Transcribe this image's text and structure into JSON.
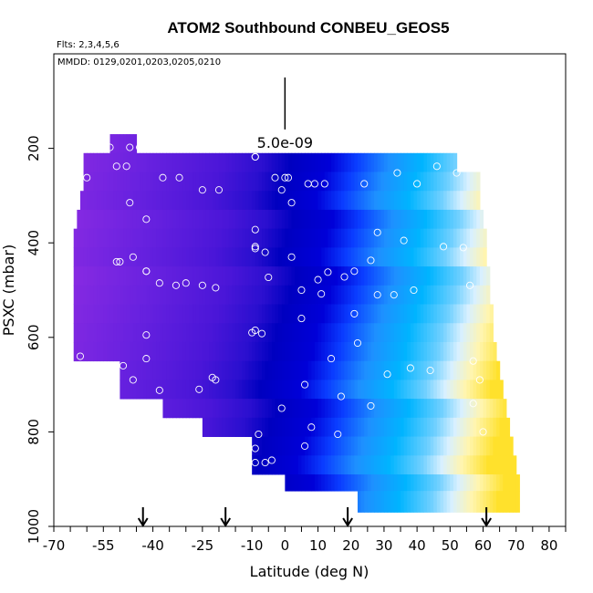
{
  "chart_data": {
    "type": "heatmap",
    "title": "ATOM2 Southbound CONBEU_GEOS5",
    "flights_note": "Flts: 2,3,4,5,6",
    "dates_note": "MMDD: 0129,0201,0203,0205,0210",
    "xlabel": "Latitude (deg N)",
    "ylabel": "PSXC (mbar)",
    "xlim": [
      -70,
      85
    ],
    "ylim": [
      1000,
      0
    ],
    "x_ticks": [
      -70,
      -55,
      -40,
      -25,
      -10,
      0,
      10,
      20,
      30,
      40,
      50,
      60,
      70,
      80
    ],
    "x_ticks_minor_step": 5,
    "y_ticks": [
      200,
      400,
      600,
      800,
      1000
    ],
    "scale_bar": {
      "label": "5.0e-09",
      "x": 0,
      "p_top": 50,
      "p_bottom": 160
    },
    "flight_arrows_lat": [
      -43,
      -18,
      19,
      61
    ],
    "colors": {
      "purple": "#8a2be2",
      "violet": "#5a1ee0",
      "indigo": "#2a10d0",
      "navy": "#0000c8",
      "blue": "#1450ff",
      "azure": "#1e90ff",
      "cyan": "#00bfff",
      "pale": "#d8f0ff",
      "cream": "#fffacd",
      "yellow": "#ffe12c",
      "marker": "#ffffff"
    },
    "rows": [
      {
        "p_top": 170,
        "p_bottom": 210,
        "lat_min": -53,
        "lat_max": -45
      },
      {
        "p_top": 210,
        "p_bottom": 250,
        "lat_min": -61,
        "lat_max": 52
      },
      {
        "p_top": 250,
        "p_bottom": 290,
        "lat_min": -61,
        "lat_max": 59
      },
      {
        "p_top": 290,
        "p_bottom": 330,
        "lat_min": -62,
        "lat_max": 59
      },
      {
        "p_top": 330,
        "p_bottom": 370,
        "lat_min": -63,
        "lat_max": 60
      },
      {
        "p_top": 370,
        "p_bottom": 410,
        "lat_min": -64,
        "lat_max": 61
      },
      {
        "p_top": 410,
        "p_bottom": 450,
        "lat_min": -64,
        "lat_max": 61
      },
      {
        "p_top": 450,
        "p_bottom": 490,
        "lat_min": -64,
        "lat_max": 62
      },
      {
        "p_top": 490,
        "p_bottom": 530,
        "lat_min": -64,
        "lat_max": 62
      },
      {
        "p_top": 530,
        "p_bottom": 570,
        "lat_min": -64,
        "lat_max": 63
      },
      {
        "p_top": 570,
        "p_bottom": 610,
        "lat_min": -64,
        "lat_max": 63
      },
      {
        "p_top": 610,
        "p_bottom": 650,
        "lat_min": -64,
        "lat_max": 64
      },
      {
        "p_top": 650,
        "p_bottom": 690,
        "lat_min": -50,
        "lat_max": 65
      },
      {
        "p_top": 690,
        "p_bottom": 730,
        "lat_min": -50,
        "lat_max": 66
      },
      {
        "p_top": 730,
        "p_bottom": 770,
        "lat_min": -37,
        "lat_max": 67
      },
      {
        "p_top": 770,
        "p_bottom": 810,
        "lat_min": -25,
        "lat_max": 68
      },
      {
        "p_top": 810,
        "p_bottom": 850,
        "lat_min": -10,
        "lat_max": 69
      },
      {
        "p_top": 850,
        "p_bottom": 890,
        "lat_min": -10,
        "lat_max": 70
      },
      {
        "p_top": 890,
        "p_bottom": 925,
        "lat_min": 0,
        "lat_max": 71
      },
      {
        "p_top": 925,
        "p_bottom": 970,
        "lat_min": 22,
        "lat_max": 71
      }
    ],
    "color_bands": [
      {
        "lat": -70,
        "color": "#8a2be2"
      },
      {
        "lat": -45,
        "color": "#6a22e0"
      },
      {
        "lat": -20,
        "color": "#4a16d8"
      },
      {
        "lat": -8,
        "color": "#2a0fcf"
      },
      {
        "lat": 0,
        "color": "#0000c0"
      },
      {
        "lat": 12,
        "color": "#0000d8"
      },
      {
        "lat": 20,
        "color": "#0a3cff"
      },
      {
        "lat": 30,
        "color": "#1e90ff"
      },
      {
        "lat": 40,
        "color": "#00b4ff"
      },
      {
        "lat": 50,
        "color": "#70d0ff"
      },
      {
        "lat": 56,
        "color": "#d8f0ff"
      },
      {
        "lat": 62,
        "color": "#fff5b0"
      },
      {
        "lat": 70,
        "color": "#ffe12c"
      }
    ],
    "points": [
      [
        -47,
        198
      ],
      [
        -44,
        198
      ],
      [
        -42,
        198
      ],
      [
        -53,
        198
      ],
      [
        -51,
        238
      ],
      [
        -48,
        238
      ],
      [
        -60,
        262
      ],
      [
        -37,
        262
      ],
      [
        -32,
        262
      ],
      [
        -25,
        288
      ],
      [
        -20,
        288
      ],
      [
        -9,
        218
      ],
      [
        -9,
        218
      ],
      [
        -3,
        262
      ],
      [
        -1,
        288
      ],
      [
        0,
        262
      ],
      [
        1,
        262
      ],
      [
        2,
        315
      ],
      [
        7,
        275
      ],
      [
        9,
        275
      ],
      [
        12,
        275
      ],
      [
        24,
        275
      ],
      [
        34,
        252
      ],
      [
        40,
        275
      ],
      [
        46,
        238
      ],
      [
        52,
        252
      ],
      [
        -47,
        315
      ],
      [
        -42,
        350
      ],
      [
        -9,
        372
      ],
      [
        -9,
        408
      ],
      [
        -9,
        412
      ],
      [
        -6,
        420
      ],
      [
        2,
        430
      ],
      [
        -46,
        430
      ],
      [
        -50,
        440
      ],
      [
        -51,
        440
      ],
      [
        -42,
        460
      ],
      [
        -42,
        460
      ],
      [
        -38,
        485
      ],
      [
        -33,
        490
      ],
      [
        -30,
        485
      ],
      [
        -25,
        490
      ],
      [
        -21,
        495
      ],
      [
        -5,
        473
      ],
      [
        5,
        500
      ],
      [
        10,
        478
      ],
      [
        13,
        462
      ],
      [
        18,
        472
      ],
      [
        11,
        508
      ],
      [
        21,
        460
      ],
      [
        26,
        437
      ],
      [
        28,
        378
      ],
      [
        36,
        395
      ],
      [
        28,
        510
      ],
      [
        33,
        510
      ],
      [
        39,
        500
      ],
      [
        48,
        408
      ],
      [
        54,
        410
      ],
      [
        56,
        490
      ],
      [
        -62,
        640
      ],
      [
        -55,
        660
      ],
      [
        -54,
        675
      ],
      [
        -53,
        680
      ],
      [
        -49,
        660
      ],
      [
        -46,
        690
      ],
      [
        -42,
        595
      ],
      [
        -42,
        645
      ],
      [
        -38,
        712
      ],
      [
        -26,
        710
      ],
      [
        -22,
        685
      ],
      [
        -21,
        690
      ],
      [
        -10,
        590
      ],
      [
        -9,
        585
      ],
      [
        -7,
        592
      ],
      [
        -8,
        805
      ],
      [
        -9,
        835
      ],
      [
        -9,
        865
      ],
      [
        -4,
        860
      ],
      [
        -6,
        865
      ],
      [
        -1,
        750
      ],
      [
        5,
        560
      ],
      [
        21,
        550
      ],
      [
        22,
        612
      ],
      [
        14,
        645
      ],
      [
        6,
        700
      ],
      [
        6,
        830
      ],
      [
        8,
        790
      ],
      [
        17,
        725
      ],
      [
        16,
        805
      ],
      [
        26,
        745
      ],
      [
        31,
        678
      ],
      [
        38,
        665
      ],
      [
        44,
        670
      ],
      [
        57,
        650
      ],
      [
        57,
        740
      ],
      [
        60,
        800
      ],
      [
        59,
        690
      ]
    ]
  }
}
